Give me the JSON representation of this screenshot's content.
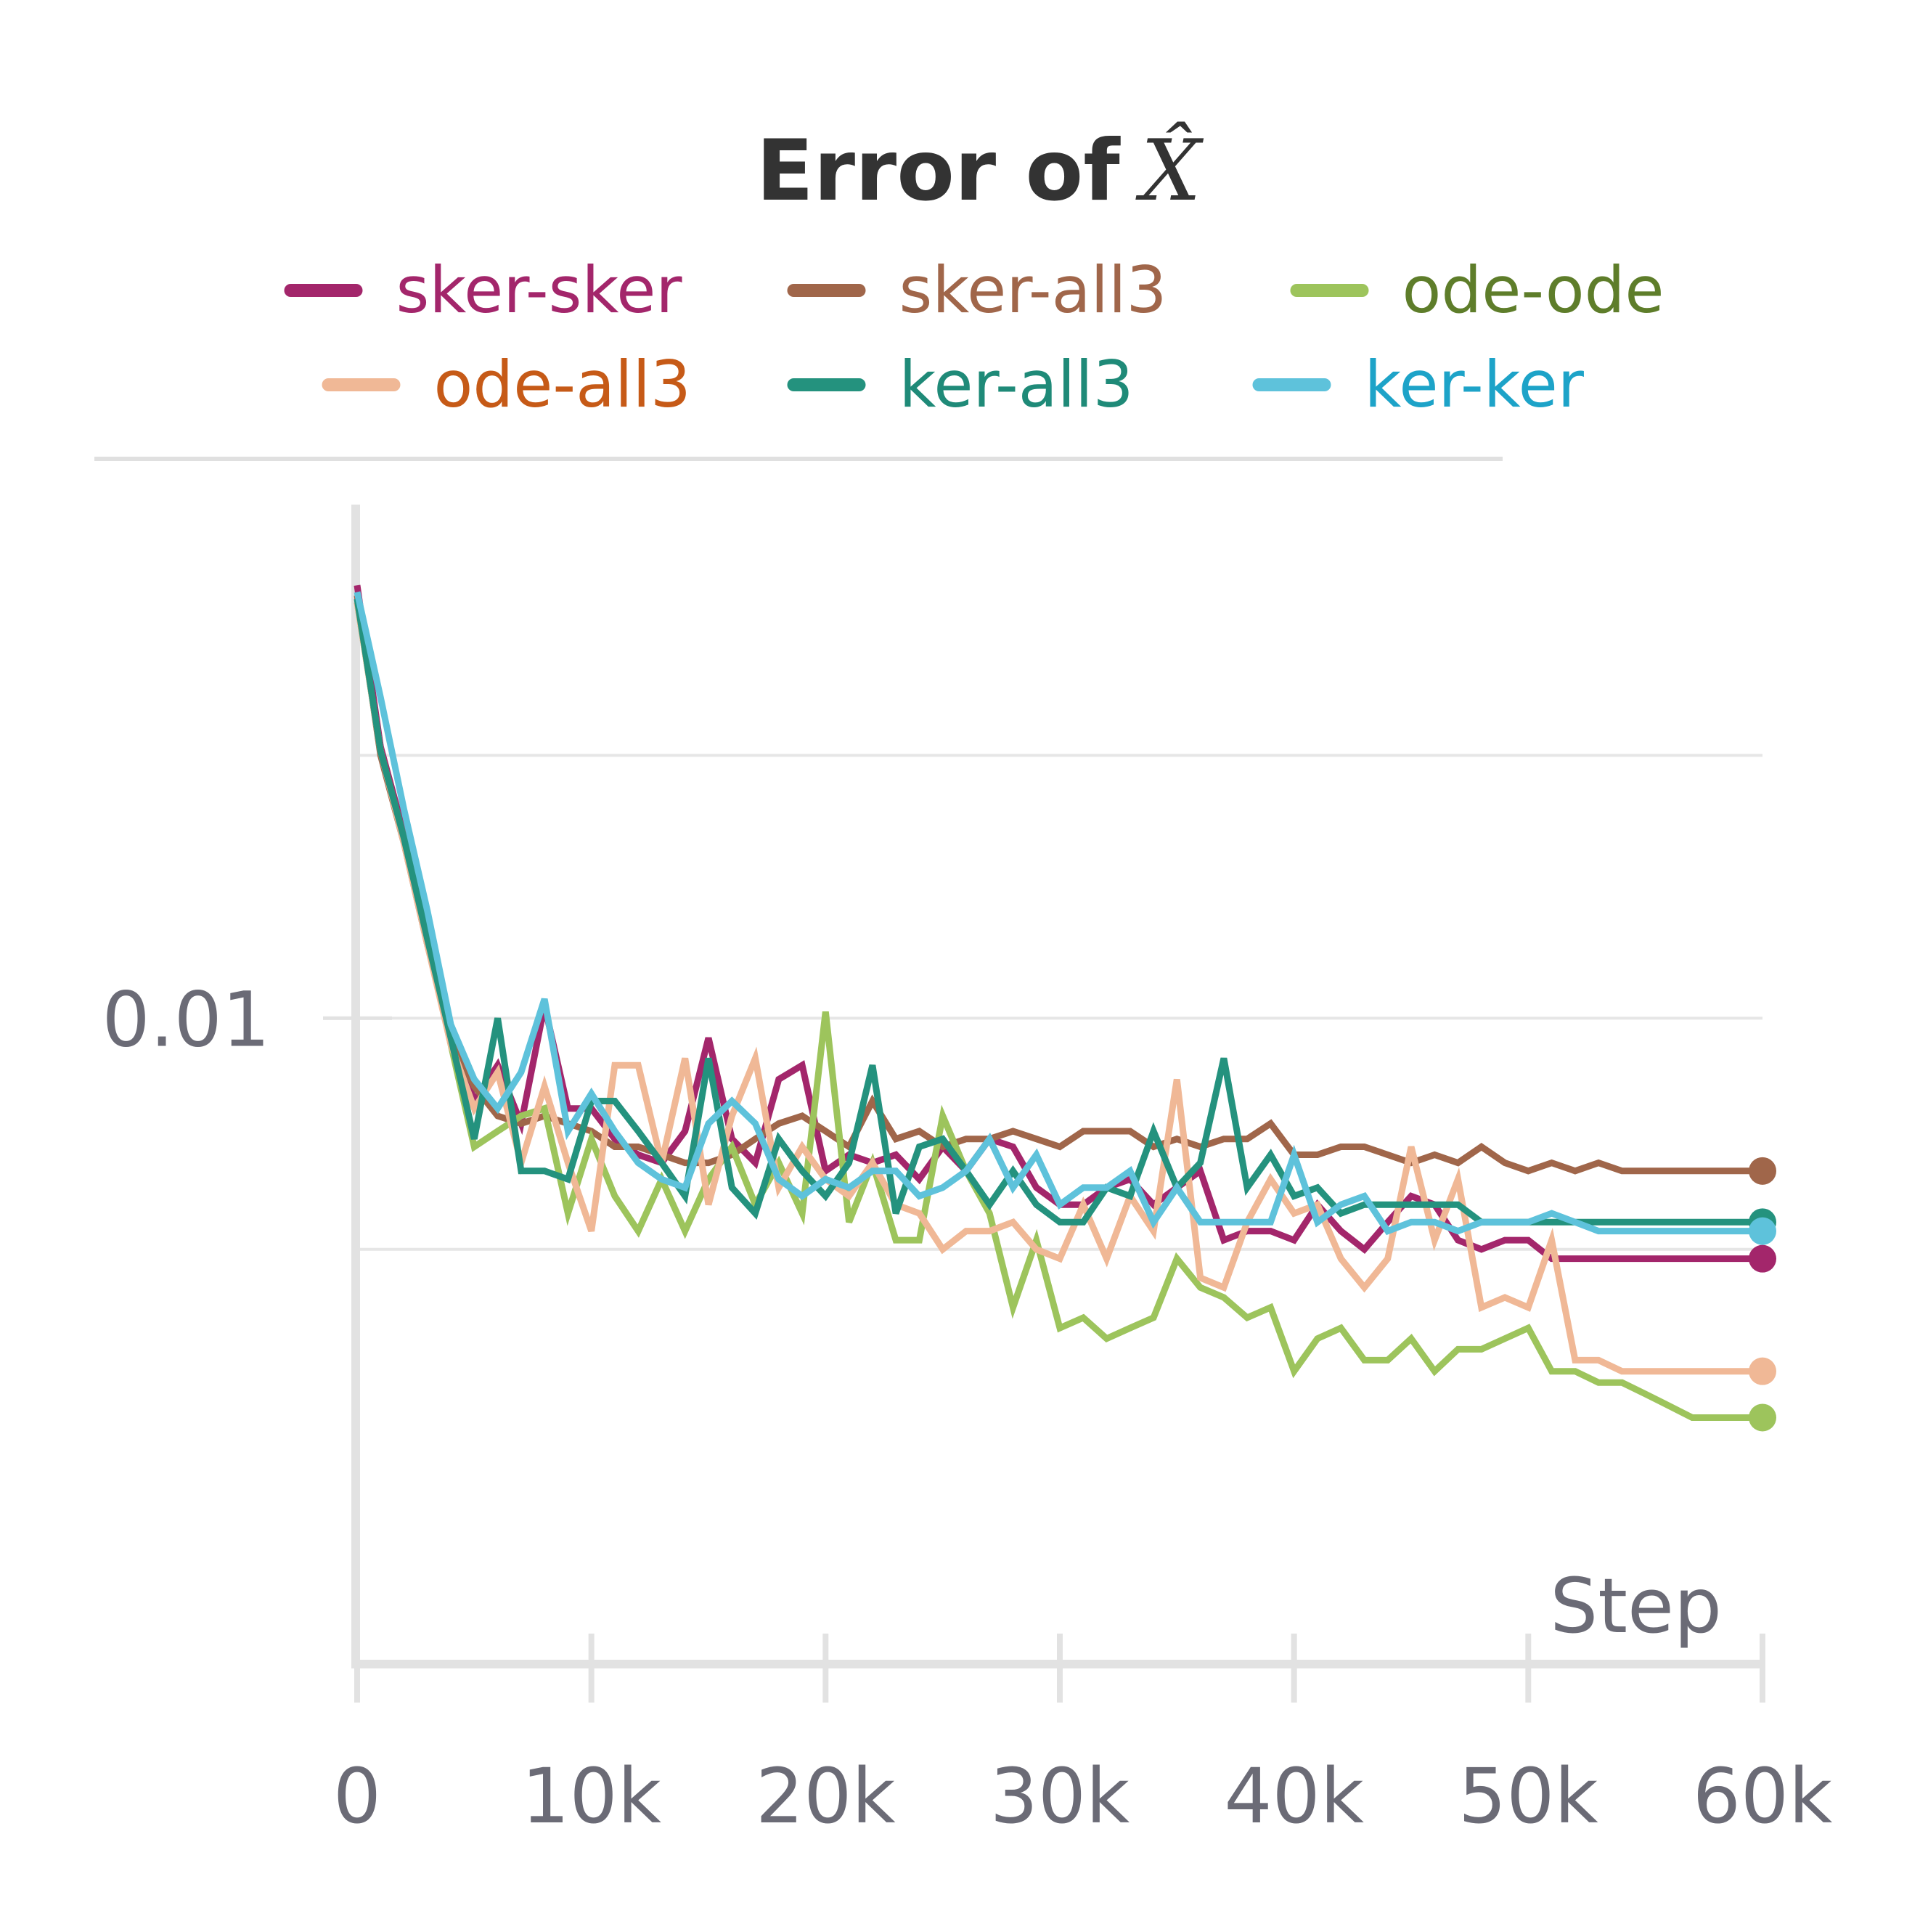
{
  "chart_data": {
    "type": "line",
    "title": "Error of",
    "title_symbol": "X̂",
    "xlabel": "Step",
    "ylabel": "",
    "y_scale": "log",
    "xlim": [
      0,
      60000
    ],
    "ylim": [
      0.0037,
      0.021
    ],
    "x_ticks": [
      0,
      10000,
      20000,
      30000,
      40000,
      50000,
      60000
    ],
    "x_tick_labels": [
      "0",
      "10k",
      "20k",
      "30k",
      "40k",
      "50k",
      "60k"
    ],
    "y_ticks": [
      0.01
    ],
    "y_tick_labels": [
      "0.01"
    ],
    "grid": true,
    "legend_position": "top",
    "x": [
      0,
      1000,
      2000,
      3000,
      4000,
      5000,
      6000,
      7000,
      8000,
      9000,
      10000,
      11000,
      12000,
      13000,
      14000,
      15000,
      16000,
      17000,
      18000,
      19000,
      20000,
      21000,
      22000,
      23000,
      24000,
      25000,
      26000,
      27000,
      28000,
      29000,
      30000,
      31000,
      32000,
      33000,
      34000,
      35000,
      36000,
      37000,
      38000,
      39000,
      40000,
      41000,
      42000,
      43000,
      44000,
      45000,
      46000,
      47000,
      48000,
      49000,
      50000,
      51000,
      52000,
      53000,
      54000,
      55000,
      56000,
      57000,
      58000,
      59000,
      60000
    ],
    "series": [
      {
        "name": "sker-sker",
        "color": "#a3266b",
        "legend_text_color": "#a3266b",
        "values": [
          0.0195,
          0.0152,
          0.0133,
          0.0114,
          0.0098,
          0.0088,
          0.0093,
          0.0085,
          0.0102,
          0.0087,
          0.0087,
          0.0083,
          0.0081,
          0.008,
          0.0084,
          0.0097,
          0.0083,
          0.008,
          0.0091,
          0.0093,
          0.0079,
          0.0081,
          0.008,
          0.0081,
          0.0078,
          0.0082,
          0.0079,
          0.0083,
          0.0082,
          0.0077,
          0.0075,
          0.0075,
          0.0077,
          0.0078,
          0.0075,
          0.0077,
          0.0079,
          0.0071,
          0.0072,
          0.0072,
          0.0071,
          0.0075,
          0.0072,
          0.007,
          0.0073,
          0.0076,
          0.0075,
          0.0071,
          0.007,
          0.0071,
          0.0071,
          0.0069,
          0.0069,
          0.0069,
          0.0069,
          0.0069,
          0.0069,
          0.0069,
          0.0069,
          0.0069,
          0.0069
        ]
      },
      {
        "name": "sker-all3",
        "color": "#a0664a",
        "legend_text_color": "#a0664a",
        "values": [
          0.0192,
          0.015,
          0.0131,
          0.0112,
          0.0097,
          0.009,
          0.0086,
          0.0085,
          0.0086,
          0.0085,
          0.0084,
          0.0082,
          0.0082,
          0.0081,
          0.008,
          0.008,
          0.0081,
          0.0083,
          0.0085,
          0.0086,
          0.0084,
          0.0082,
          0.0088,
          0.0083,
          0.0084,
          0.0082,
          0.0083,
          0.0083,
          0.0084,
          0.0083,
          0.0082,
          0.0084,
          0.0084,
          0.0084,
          0.0082,
          0.0083,
          0.0082,
          0.0083,
          0.0083,
          0.0085,
          0.0081,
          0.0081,
          0.0082,
          0.0082,
          0.0081,
          0.008,
          0.0081,
          0.008,
          0.0082,
          0.008,
          0.0079,
          0.008,
          0.0079,
          0.008,
          0.0079,
          0.0079,
          0.0079,
          0.0079,
          0.0079,
          0.0079,
          0.0079
        ]
      },
      {
        "name": "ode-ode",
        "color": "#9dc45c",
        "legend_text_color": "#5e7d2a",
        "values": [
          0.019,
          0.0151,
          0.0132,
          0.0113,
          0.0096,
          0.0082,
          0.0084,
          0.0086,
          0.0087,
          0.0074,
          0.0083,
          0.0076,
          0.0072,
          0.0078,
          0.0072,
          0.0078,
          0.0082,
          0.0075,
          0.008,
          0.0074,
          0.0101,
          0.0073,
          0.008,
          0.0071,
          0.0071,
          0.0086,
          0.0079,
          0.0074,
          0.0064,
          0.0071,
          0.0062,
          0.0063,
          0.0061,
          0.0062,
          0.0063,
          0.0069,
          0.0066,
          0.0065,
          0.0063,
          0.0064,
          0.0058,
          0.0061,
          0.0062,
          0.0059,
          0.0059,
          0.0061,
          0.0058,
          0.006,
          0.006,
          0.0061,
          0.0062,
          0.0058,
          0.0058,
          0.0057,
          0.0057,
          0.0056,
          0.0055,
          0.0054,
          0.0054,
          0.0054,
          0.0054
        ]
      },
      {
        "name": "ode-all3",
        "color": "#f0b896",
        "legend_text_color": "#c65a17",
        "values": [
          0.019,
          0.0151,
          0.0131,
          0.0112,
          0.0096,
          0.0087,
          0.0092,
          0.008,
          0.009,
          0.008,
          0.0072,
          0.0093,
          0.0093,
          0.008,
          0.0094,
          0.0075,
          0.0086,
          0.0094,
          0.0077,
          0.0082,
          0.0078,
          0.0076,
          0.008,
          0.0075,
          0.0074,
          0.007,
          0.0072,
          0.0072,
          0.0073,
          0.007,
          0.0069,
          0.0075,
          0.0069,
          0.0076,
          0.0072,
          0.0091,
          0.0067,
          0.0066,
          0.0073,
          0.0078,
          0.0074,
          0.0075,
          0.0069,
          0.0066,
          0.0069,
          0.0082,
          0.0071,
          0.0078,
          0.0064,
          0.0065,
          0.0064,
          0.0071,
          0.0059,
          0.0059,
          0.0058,
          0.0058,
          0.0058,
          0.0058,
          0.0058,
          0.0058,
          0.0058
        ]
      },
      {
        "name": "ker-all3",
        "color": "#24927e",
        "legend_text_color": "#1f8a78",
        "values": [
          0.0191,
          0.0151,
          0.0132,
          0.0113,
          0.0097,
          0.0083,
          0.01,
          0.0079,
          0.0079,
          0.0078,
          0.0088,
          0.0088,
          0.0084,
          0.008,
          0.0076,
          0.0094,
          0.0077,
          0.0074,
          0.0083,
          0.0079,
          0.0076,
          0.008,
          0.0093,
          0.0074,
          0.0082,
          0.0083,
          0.0079,
          0.0075,
          0.0079,
          0.0075,
          0.0073,
          0.0073,
          0.0077,
          0.0076,
          0.0084,
          0.0077,
          0.008,
          0.0094,
          0.0077,
          0.0081,
          0.0076,
          0.0077,
          0.0074,
          0.0075,
          0.0075,
          0.0075,
          0.0075,
          0.0075,
          0.0073,
          0.0073,
          0.0073,
          0.0073,
          0.0073,
          0.0073,
          0.0073,
          0.0073,
          0.0073,
          0.0073,
          0.0073,
          0.0073,
          0.0073
        ]
      },
      {
        "name": "ker-ker",
        "color": "#5ec2db",
        "legend_text_color": "#1da3c8",
        "values": [
          0.0193,
          0.0164,
          0.0138,
          0.0118,
          0.0099,
          0.0091,
          0.0087,
          0.0092,
          0.0103,
          0.0084,
          0.0089,
          0.0084,
          0.008,
          0.0078,
          0.0077,
          0.0085,
          0.0088,
          0.0085,
          0.0078,
          0.0076,
          0.0078,
          0.0077,
          0.0079,
          0.0079,
          0.0076,
          0.0077,
          0.0079,
          0.0083,
          0.0077,
          0.0081,
          0.0075,
          0.0077,
          0.0077,
          0.0079,
          0.0073,
          0.0077,
          0.0073,
          0.0073,
          0.0073,
          0.0073,
          0.0081,
          0.0073,
          0.0075,
          0.0076,
          0.0072,
          0.0073,
          0.0073,
          0.0072,
          0.0073,
          0.0073,
          0.0073,
          0.0074,
          0.0073,
          0.0072,
          0.0072,
          0.0072,
          0.0072,
          0.0072,
          0.0072,
          0.0072,
          0.0072
        ]
      }
    ]
  }
}
